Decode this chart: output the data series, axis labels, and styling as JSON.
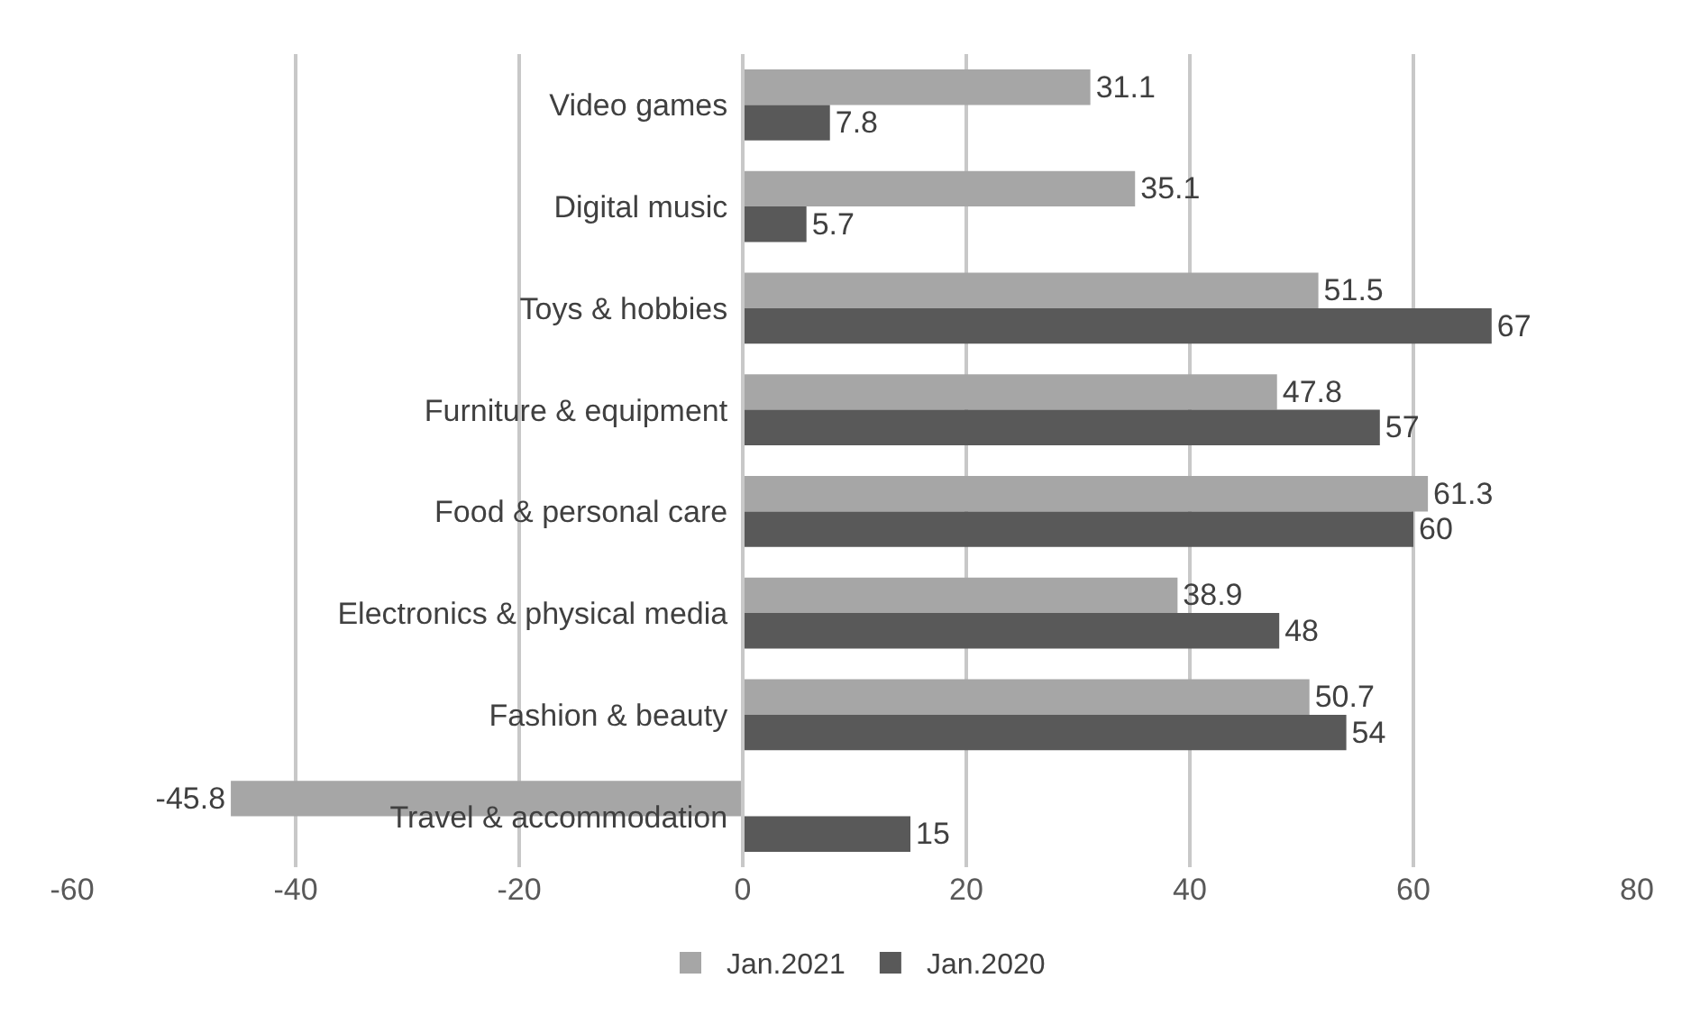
{
  "chart_data": {
    "type": "bar",
    "orientation": "horizontal",
    "categories": [
      "Video games",
      "Digital music",
      "Toys & hobbies",
      "Furniture & equipment",
      "Food & personal care",
      "Electronics & physical media",
      "Fashion & beauty",
      "Travel & accommodation"
    ],
    "series": [
      {
        "name": "Jan.2021",
        "color": "#a6a6a6",
        "values": [
          31.1,
          35.1,
          51.5,
          47.8,
          61.3,
          38.9,
          50.7,
          -45.8
        ]
      },
      {
        "name": "Jan.2020",
        "color": "#595959",
        "values": [
          7.8,
          5.7,
          67,
          57,
          60,
          48,
          54,
          15
        ]
      }
    ],
    "xlim": [
      -60,
      80
    ],
    "xticks": [
      -60,
      -40,
      -20,
      0,
      20,
      40,
      60,
      80
    ],
    "grid": "x",
    "legend": "bottom",
    "data_labels": true
  }
}
